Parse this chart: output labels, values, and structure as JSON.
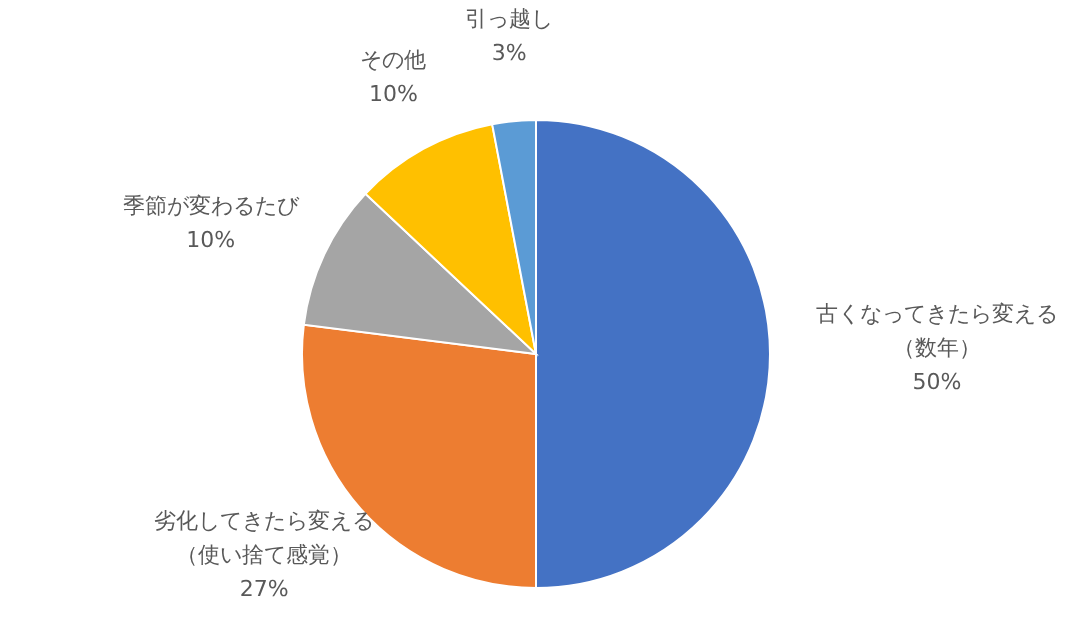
{
  "chart_data": {
    "type": "pie",
    "categories": [
      "古くなってきたら変える（数年）",
      "劣化してきたら変える（使い捨て感覚）",
      "季節が変わるたび",
      "その他",
      "引っ越し"
    ],
    "values": [
      50,
      27,
      10,
      10,
      3
    ],
    "colors": [
      "#4472c4",
      "#ed7d31",
      "#a5a5a5",
      "#ffc000",
      "#5b9bd5"
    ],
    "value_labels": [
      "50%",
      "27%",
      "10%",
      "10%",
      "3%"
    ]
  }
}
